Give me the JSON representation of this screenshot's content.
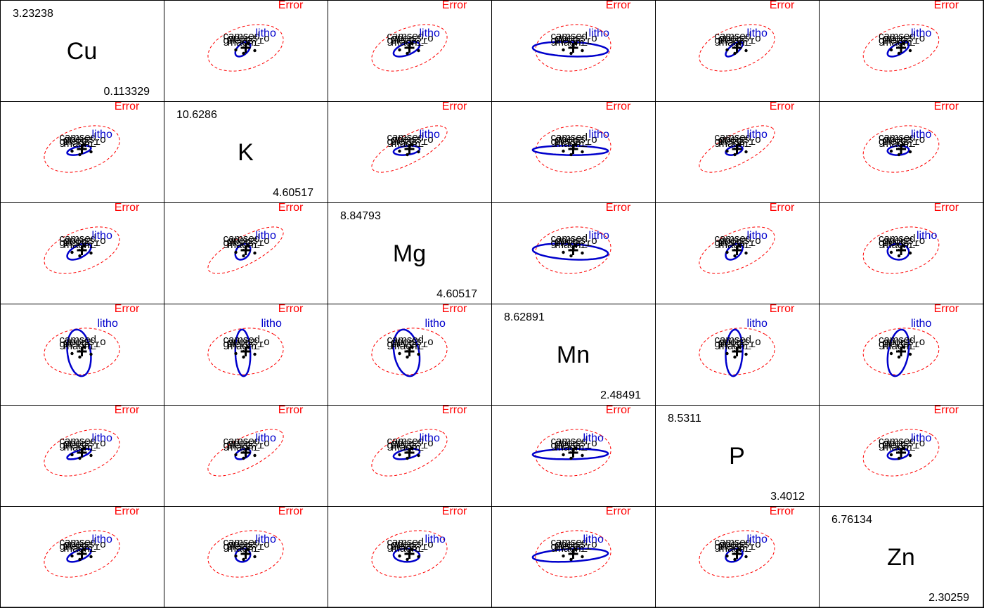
{
  "chart_data": {
    "type": "hypothesis-error-ellipse-matrix",
    "title": "",
    "variables": [
      {
        "name": "Cu",
        "max": "3.23238",
        "min": "0.113329"
      },
      {
        "name": "K",
        "max": "10.6286",
        "min": "4.60517"
      },
      {
        "name": "Mg",
        "max": "8.84793",
        "min": "4.60517"
      },
      {
        "name": "Mn",
        "max": "8.62891",
        "min": "2.48491"
      },
      {
        "name": "P",
        "max": "8.5311",
        "min": "3.4012"
      },
      {
        "name": "Zn",
        "max": "6.76134",
        "min": "2.30259"
      }
    ],
    "labels": {
      "error": "Error",
      "hypothesis": "litho",
      "group_levels": [
        "camsed",
        "gneiss_o",
        "gneiss_r",
        "magm"
      ]
    },
    "colors": {
      "error": "#ff0000",
      "hypothesis": "#0000cc",
      "points": "#000000",
      "grid": "#000000"
    },
    "variance": {
      "Cu": {
        "E": 1.0,
        "H": 0.1
      },
      "K": {
        "E": 1.0,
        "H": 0.04
      },
      "Mg": {
        "E": 1.0,
        "H": 0.12
      },
      "Mn": {
        "E": 1.0,
        "H": 1.0
      },
      "P": {
        "E": 1.0,
        "H": 0.05
      },
      "Zn": {
        "E": 1.0,
        "H": 0.08
      }
    },
    "correlation_error": {
      "Cu-K": 0.35,
      "Cu-Mg": 0.45,
      "Cu-Mn": 0.1,
      "Cu-P": 0.4,
      "Cu-Zn": 0.35,
      "K-Mg": 0.75,
      "K-Mn": 0.1,
      "K-P": 0.7,
      "K-Zn": 0.2,
      "Mg-Mn": 0.1,
      "Mg-P": 0.55,
      "Mg-Zn": 0.25,
      "Mn-P": 0.1,
      "Mn-Zn": 0.1,
      "P-Zn": 0.25
    },
    "correlation_hypothesis": {
      "Cu-K": 0.5,
      "Cu-Mg": 0.55,
      "Cu-Mn": -0.2,
      "Cu-P": 0.7,
      "Cu-Zn": 0.6,
      "K-Mg": 0.3,
      "K-Mn": -0.1,
      "K-P": 0.4,
      "K-Zn": 0.1,
      "Mg-Mn": -0.25,
      "Mg-P": 0.45,
      "Mg-Zn": -0.05,
      "Mn-P": 0.1,
      "Mn-Zn": 0.3,
      "P-Zn": 0.3
    }
  }
}
